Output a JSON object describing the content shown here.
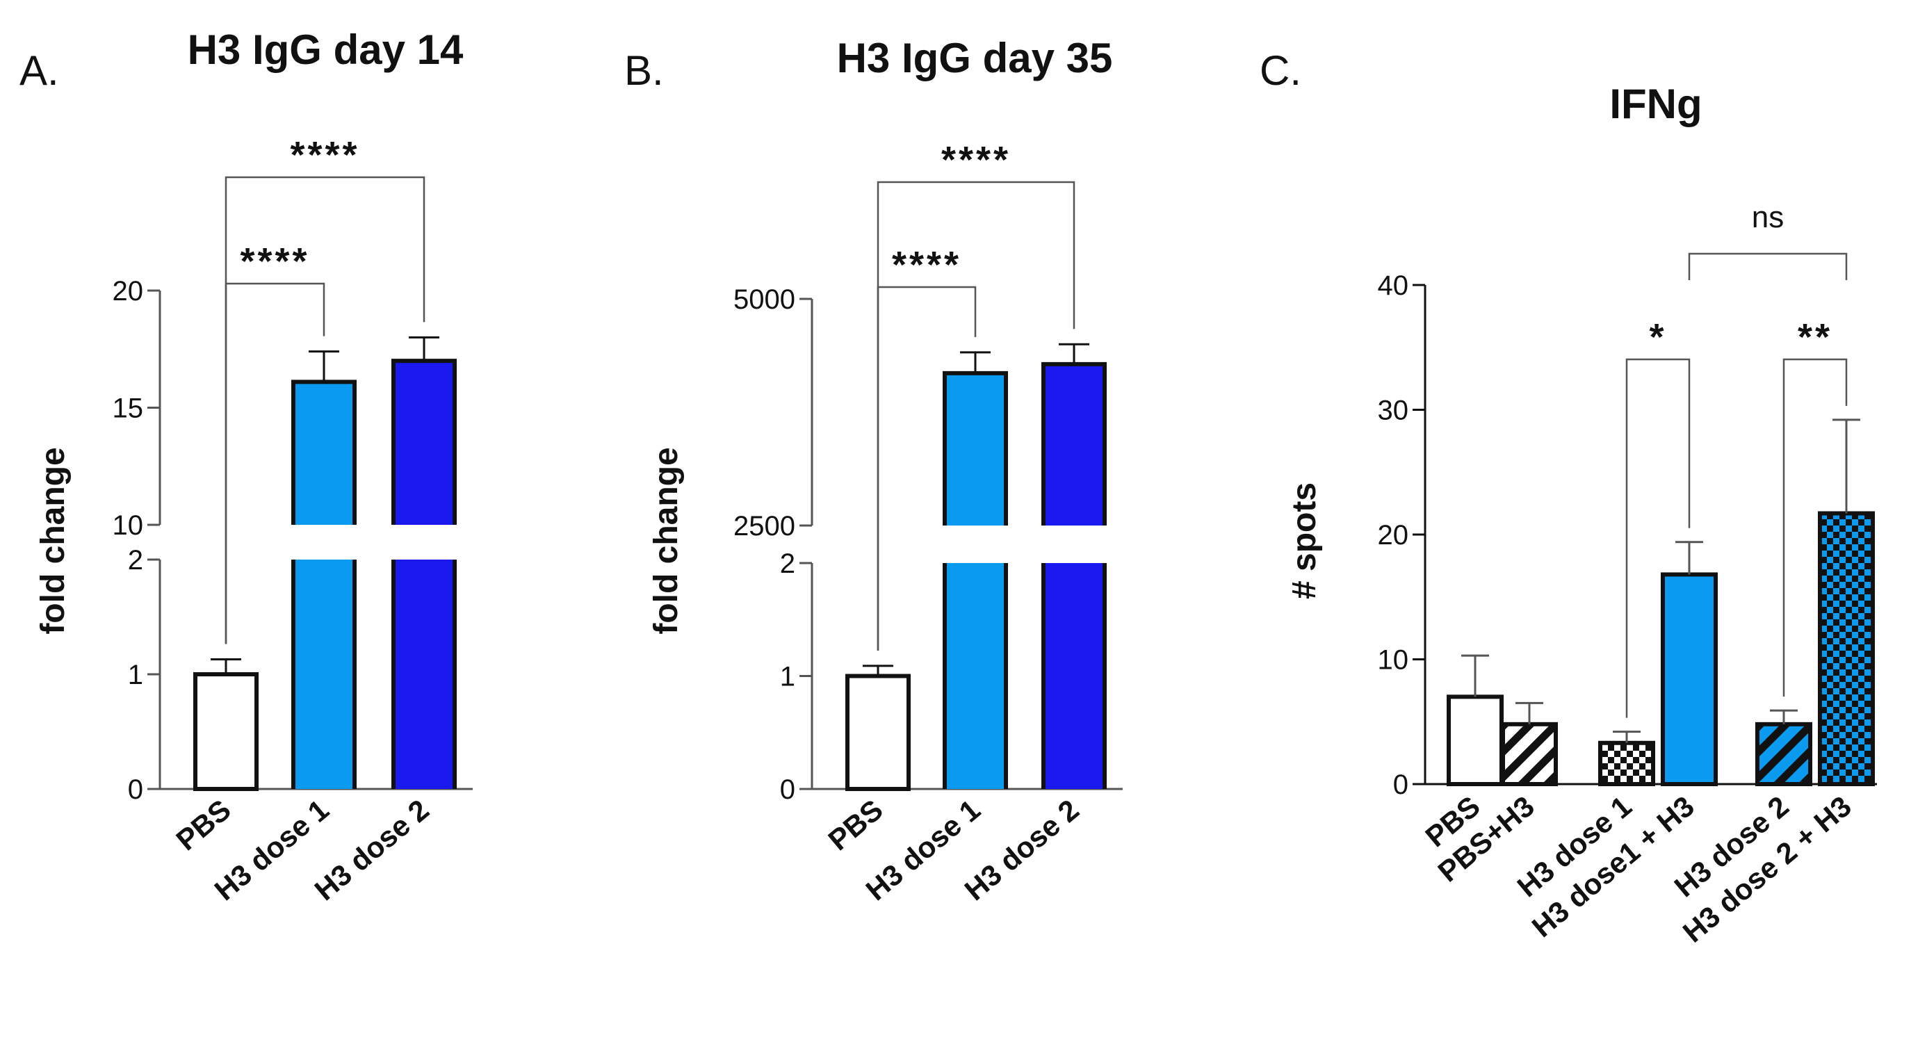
{
  "chart_data": [
    {
      "panel": "A.",
      "type": "bar",
      "title": "H3 IgG day 14",
      "xlabel": "",
      "ylabel": "fold change",
      "y_axis_broken": true,
      "y_segments": [
        {
          "range": [
            0,
            2
          ],
          "ticks": [
            "0",
            "1",
            "2"
          ]
        },
        {
          "range": [
            10,
            20
          ],
          "ticks": [
            "10",
            "15",
            "20"
          ]
        }
      ],
      "categories": [
        "PBS",
        "H3 dose 1",
        "H3 dose 2"
      ],
      "values": [
        1.0,
        16.1,
        17.0
      ],
      "errors": [
        0.13,
        1.3,
        1.0
      ],
      "fill_colors": [
        "#ffffff",
        "#0a9bf0",
        "#1a1aee"
      ],
      "patterns": [
        "solid",
        "solid",
        "solid"
      ],
      "significance": [
        {
          "from": 0,
          "to": 1,
          "label": "****"
        },
        {
          "from": 0,
          "to": 2,
          "label": "****"
        }
      ]
    },
    {
      "panel": "B.",
      "type": "bar",
      "title": "H3 IgG day 35",
      "xlabel": "",
      "ylabel": "fold change",
      "y_axis_broken": true,
      "y_segments": [
        {
          "range": [
            0,
            2
          ],
          "ticks": [
            "0",
            "1",
            "2"
          ]
        },
        {
          "range": [
            2500,
            5000
          ],
          "ticks": [
            "2500",
            "5000"
          ]
        }
      ],
      "categories": [
        "PBS",
        "H3 dose 1",
        "H3 dose 2"
      ],
      "values": [
        1.0,
        4180,
        4280
      ],
      "errors": [
        0.09,
        230,
        220
      ],
      "fill_colors": [
        "#ffffff",
        "#0a9bf0",
        "#1a1aee"
      ],
      "patterns": [
        "solid",
        "solid",
        "solid"
      ],
      "significance": [
        {
          "from": 0,
          "to": 1,
          "label": "****"
        },
        {
          "from": 0,
          "to": 2,
          "label": "****"
        }
      ]
    },
    {
      "panel": "C.",
      "type": "bar",
      "title": "IFNg",
      "xlabel": "",
      "ylabel": "# spots",
      "ylim": [
        0,
        40
      ],
      "yticks": [
        "0",
        "10",
        "20",
        "30",
        "40"
      ],
      "categories": [
        "PBS",
        "PBS+H3",
        "H3 dose 1",
        "H3 dose1 + H3",
        "H3 dose 2",
        "H3 dose 2 + H3"
      ],
      "values": [
        7.0,
        4.8,
        3.3,
        16.8,
        4.8,
        21.7
      ],
      "errors": [
        3.3,
        1.7,
        0.9,
        2.6,
        1.1,
        7.5
      ],
      "fill_colors": [
        "#ffffff",
        "#ffffff",
        "#ffffff",
        "#0a9bf0",
        "#0a9bf0",
        "#0a9bf0"
      ],
      "patterns": [
        "solid",
        "diagonal-stripes",
        "checker",
        "solid",
        "diagonal-stripes",
        "checker"
      ],
      "significance": [
        {
          "from": 2,
          "to": 3,
          "label": "*"
        },
        {
          "from": 4,
          "to": 5,
          "label": "**"
        },
        {
          "from": 3,
          "to": 5,
          "label": "ns"
        }
      ]
    }
  ]
}
